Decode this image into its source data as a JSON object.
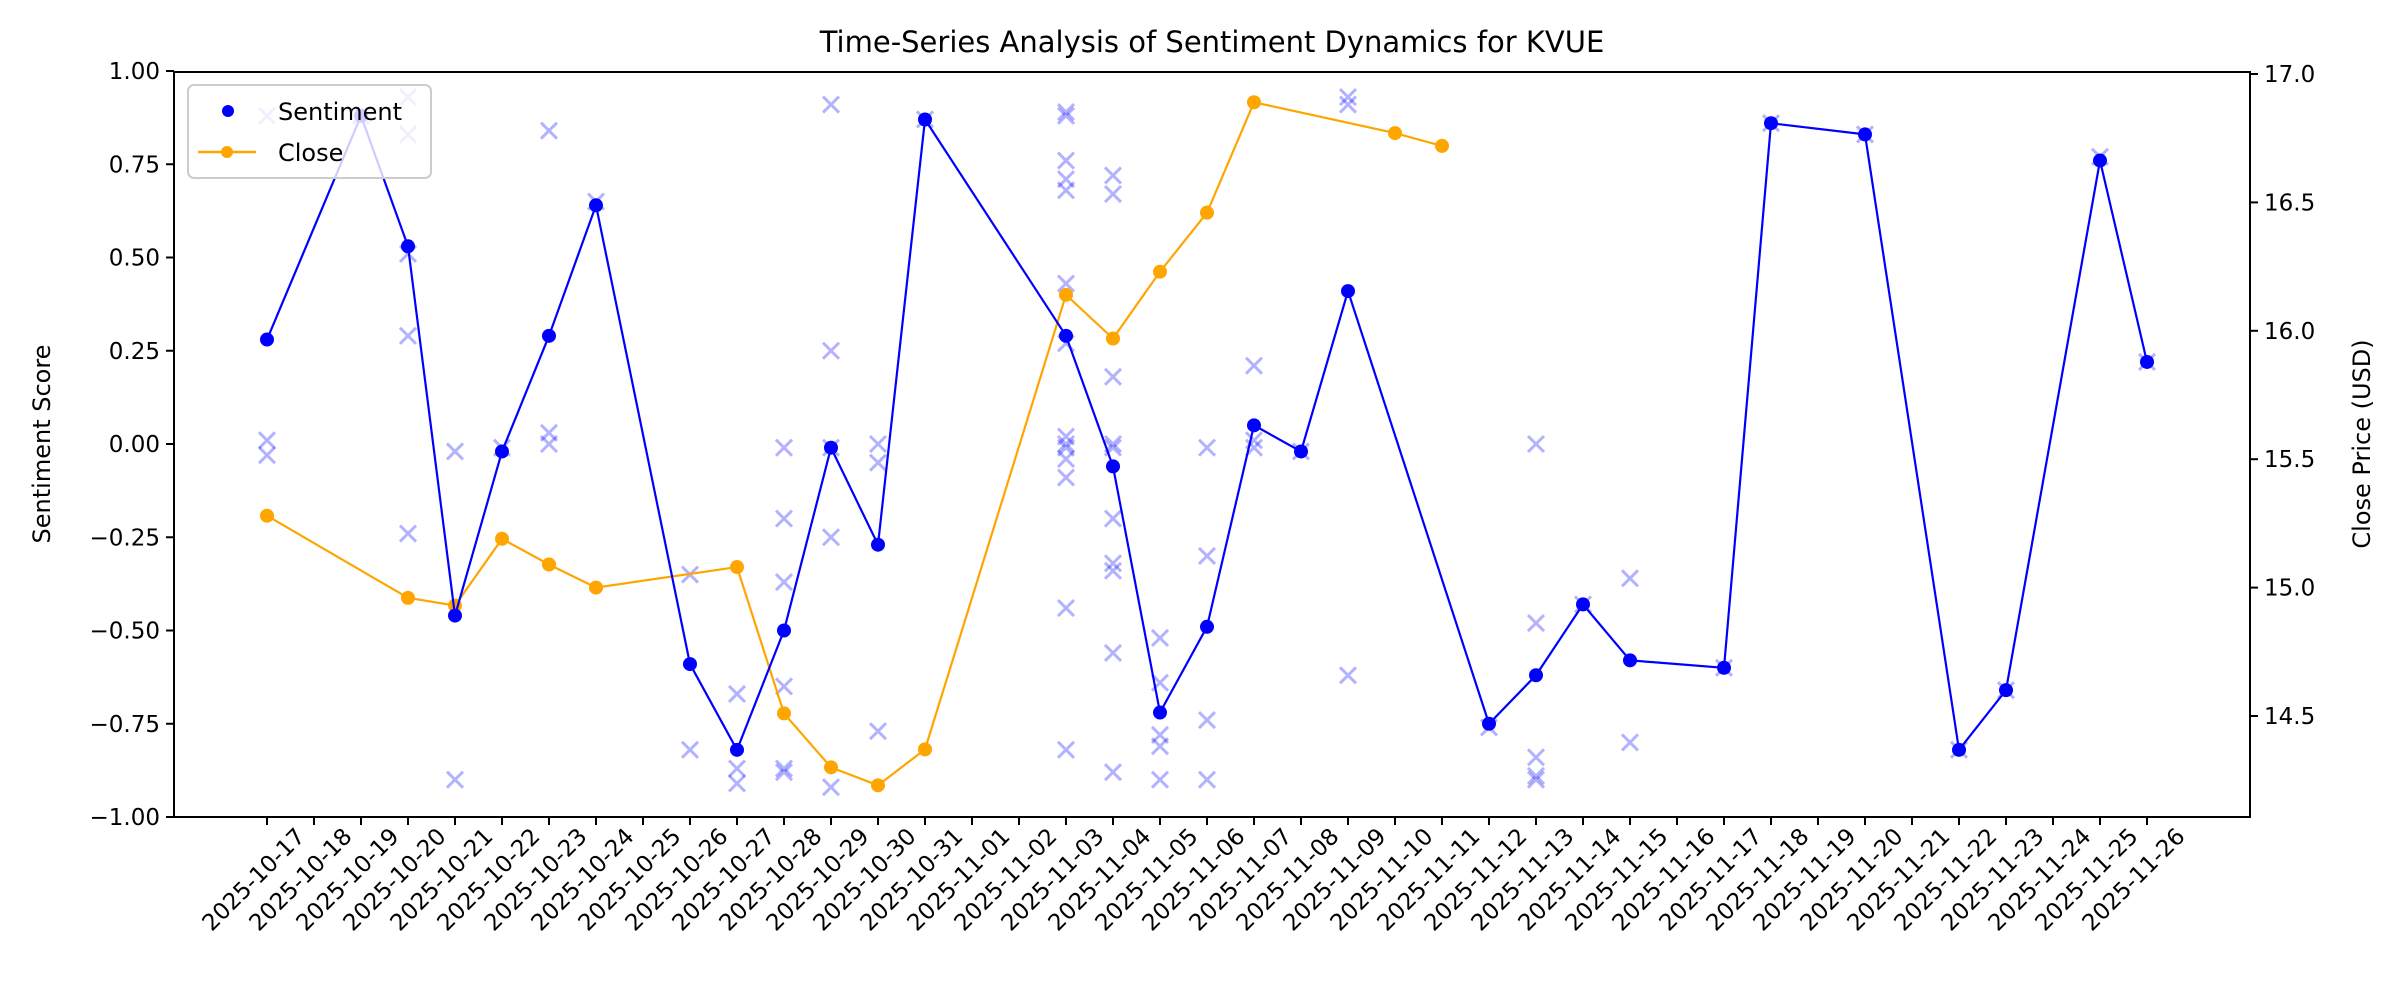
{
  "chart_data": {
    "type": "line",
    "title": "Time-Series Analysis of Sentiment Dynamics for KVUE",
    "xlabel": "",
    "ylabel": "Sentiment Score",
    "ylabel_right": "Close Price (USD)",
    "ylim": [
      -1.0,
      1.0
    ],
    "ylim_right": [
      14.1,
      17.0
    ],
    "yticks": [
      "1.00",
      "0.75",
      "0.50",
      "0.25",
      "0.00",
      "−0.25",
      "−0.50",
      "−0.75",
      "−1.00"
    ],
    "yticks_right": [
      "17.0",
      "16.5",
      "16.0",
      "15.5",
      "15.0",
      "14.5"
    ],
    "grid": false,
    "legend_position": "upper left",
    "categories": [
      "2025-10-17",
      "2025-10-18",
      "2025-10-19",
      "2025-10-20",
      "2025-10-21",
      "2025-10-22",
      "2025-10-23",
      "2025-10-24",
      "2025-10-25",
      "2025-10-26",
      "2025-10-27",
      "2025-10-28",
      "2025-10-29",
      "2025-10-30",
      "2025-10-31",
      "2025-11-01",
      "2025-11-02",
      "2025-11-03",
      "2025-11-04",
      "2025-11-05",
      "2025-11-06",
      "2025-11-07",
      "2025-11-08",
      "2025-11-09",
      "2025-11-10",
      "2025-11-11",
      "2025-11-12",
      "2025-11-13",
      "2025-11-14",
      "2025-11-15",
      "2025-11-16",
      "2025-11-17",
      "2025-11-18",
      "2025-11-19",
      "2025-11-20",
      "2025-11-21",
      "2025-11-22",
      "2025-11-23",
      "2025-11-24",
      "2025-11-25",
      "2025-11-26"
    ],
    "series": [
      {
        "name": "Sentiment",
        "axis": "left",
        "color": "#0000ff",
        "style": "markers-with-line",
        "points": [
          {
            "x": "2025-10-17",
            "y": 0.28
          },
          {
            "x": "2025-10-19",
            "y": 0.88
          },
          {
            "x": "2025-10-20",
            "y": 0.53
          },
          {
            "x": "2025-10-21",
            "y": -0.46
          },
          {
            "x": "2025-10-22",
            "y": -0.02
          },
          {
            "x": "2025-10-23",
            "y": 0.29
          },
          {
            "x": "2025-10-24",
            "y": 0.64
          },
          {
            "x": "2025-10-26",
            "y": -0.59
          },
          {
            "x": "2025-10-27",
            "y": -0.82
          },
          {
            "x": "2025-10-28",
            "y": -0.5
          },
          {
            "x": "2025-10-29",
            "y": -0.01
          },
          {
            "x": "2025-10-30",
            "y": -0.27
          },
          {
            "x": "2025-10-31",
            "y": 0.87
          },
          {
            "x": "2025-11-03",
            "y": 0.29
          },
          {
            "x": "2025-11-04",
            "y": -0.06
          },
          {
            "x": "2025-11-05",
            "y": -0.72
          },
          {
            "x": "2025-11-06",
            "y": -0.49
          },
          {
            "x": "2025-11-07",
            "y": 0.05
          },
          {
            "x": "2025-11-08",
            "y": -0.02
          },
          {
            "x": "2025-11-09",
            "y": 0.41
          },
          {
            "x": "2025-11-12",
            "y": -0.75
          },
          {
            "x": "2025-11-13",
            "y": -0.62
          },
          {
            "x": "2025-11-14",
            "y": -0.43
          },
          {
            "x": "2025-11-15",
            "y": -0.58
          },
          {
            "x": "2025-11-17",
            "y": -0.6
          },
          {
            "x": "2025-11-18",
            "y": 0.86
          },
          {
            "x": "2025-11-20",
            "y": 0.83
          },
          {
            "x": "2025-11-22",
            "y": -0.82
          },
          {
            "x": "2025-11-23",
            "y": -0.66
          },
          {
            "x": "2025-11-25",
            "y": 0.76
          },
          {
            "x": "2025-11-26",
            "y": 0.22
          }
        ]
      },
      {
        "name": "Close",
        "axis": "right",
        "color": "#ffa500",
        "style": "line-with-markers",
        "points": [
          {
            "x": "2025-10-17",
            "y": 15.28
          },
          {
            "x": "2025-10-20",
            "y": 14.96
          },
          {
            "x": "2025-10-21",
            "y": 14.93
          },
          {
            "x": "2025-10-22",
            "y": 15.19
          },
          {
            "x": "2025-10-23",
            "y": 15.09
          },
          {
            "x": "2025-10-24",
            "y": 15.0
          },
          {
            "x": "2025-10-27",
            "y": 15.08
          },
          {
            "x": "2025-10-28",
            "y": 14.51
          },
          {
            "x": "2025-10-29",
            "y": 14.3
          },
          {
            "x": "2025-10-30",
            "y": 14.23
          },
          {
            "x": "2025-10-31",
            "y": 14.37
          },
          {
            "x": "2025-11-03",
            "y": 16.14
          },
          {
            "x": "2025-11-04",
            "y": 15.97
          },
          {
            "x": "2025-11-05",
            "y": 16.23
          },
          {
            "x": "2025-11-06",
            "y": 16.46
          },
          {
            "x": "2025-11-07",
            "y": 16.89
          },
          {
            "x": "2025-11-10",
            "y": 16.77
          },
          {
            "x": "2025-11-11",
            "y": 16.72
          }
        ]
      },
      {
        "name": "Individual sentiment scores",
        "axis": "left",
        "color": "#0000ff",
        "opacity": 0.3,
        "style": "x-markers",
        "in_legend": false,
        "points": [
          {
            "x": "2025-10-17",
            "y": 0.88
          },
          {
            "x": "2025-10-17",
            "y": 0.01
          },
          {
            "x": "2025-10-17",
            "y": -0.03
          },
          {
            "x": "2025-10-19",
            "y": 0.88
          },
          {
            "x": "2025-10-20",
            "y": 0.93
          },
          {
            "x": "2025-10-20",
            "y": 0.83
          },
          {
            "x": "2025-10-20",
            "y": 0.51
          },
          {
            "x": "2025-10-20",
            "y": 0.29
          },
          {
            "x": "2025-10-20",
            "y": -0.24
          },
          {
            "x": "2025-10-21",
            "y": -0.02
          },
          {
            "x": "2025-10-21",
            "y": -0.9
          },
          {
            "x": "2025-10-22",
            "y": -0.01
          },
          {
            "x": "2025-10-23",
            "y": 0.84
          },
          {
            "x": "2025-10-23",
            "y": 0.03
          },
          {
            "x": "2025-10-23",
            "y": 0.0
          },
          {
            "x": "2025-10-24",
            "y": 0.65
          },
          {
            "x": "2025-10-26",
            "y": -0.35
          },
          {
            "x": "2025-10-26",
            "y": -0.82
          },
          {
            "x": "2025-10-27",
            "y": -0.67
          },
          {
            "x": "2025-10-27",
            "y": -0.87
          },
          {
            "x": "2025-10-27",
            "y": -0.91
          },
          {
            "x": "2025-10-28",
            "y": -0.01
          },
          {
            "x": "2025-10-28",
            "y": -0.2
          },
          {
            "x": "2025-10-28",
            "y": -0.37
          },
          {
            "x": "2025-10-28",
            "y": -0.65
          },
          {
            "x": "2025-10-28",
            "y": -0.87
          },
          {
            "x": "2025-10-28",
            "y": -0.88
          },
          {
            "x": "2025-10-29",
            "y": 0.91
          },
          {
            "x": "2025-10-29",
            "y": 0.25
          },
          {
            "x": "2025-10-29",
            "y": -0.01
          },
          {
            "x": "2025-10-29",
            "y": -0.25
          },
          {
            "x": "2025-10-29",
            "y": -0.92
          },
          {
            "x": "2025-10-30",
            "y": 0.0
          },
          {
            "x": "2025-10-30",
            "y": -0.05
          },
          {
            "x": "2025-10-30",
            "y": -0.77
          },
          {
            "x": "2025-10-31",
            "y": 0.87
          },
          {
            "x": "2025-11-03",
            "y": 0.89
          },
          {
            "x": "2025-11-03",
            "y": 0.88
          },
          {
            "x": "2025-11-03",
            "y": 0.76
          },
          {
            "x": "2025-11-03",
            "y": 0.71
          },
          {
            "x": "2025-11-03",
            "y": 0.68
          },
          {
            "x": "2025-11-03",
            "y": 0.43
          },
          {
            "x": "2025-11-03",
            "y": 0.27
          },
          {
            "x": "2025-11-03",
            "y": 0.02
          },
          {
            "x": "2025-11-03",
            "y": 0.0
          },
          {
            "x": "2025-11-03",
            "y": -0.01
          },
          {
            "x": "2025-11-03",
            "y": -0.04
          },
          {
            "x": "2025-11-03",
            "y": -0.09
          },
          {
            "x": "2025-11-03",
            "y": -0.44
          },
          {
            "x": "2025-11-03",
            "y": -0.82
          },
          {
            "x": "2025-11-04",
            "y": 0.72
          },
          {
            "x": "2025-11-04",
            "y": 0.67
          },
          {
            "x": "2025-11-04",
            "y": 0.18
          },
          {
            "x": "2025-11-04",
            "y": 0.0
          },
          {
            "x": "2025-11-04",
            "y": -0.01
          },
          {
            "x": "2025-11-04",
            "y": -0.2
          },
          {
            "x": "2025-11-04",
            "y": -0.32
          },
          {
            "x": "2025-11-04",
            "y": -0.34
          },
          {
            "x": "2025-11-04",
            "y": -0.56
          },
          {
            "x": "2025-11-04",
            "y": -0.88
          },
          {
            "x": "2025-11-05",
            "y": -0.52
          },
          {
            "x": "2025-11-05",
            "y": -0.64
          },
          {
            "x": "2025-11-05",
            "y": -0.78
          },
          {
            "x": "2025-11-05",
            "y": -0.81
          },
          {
            "x": "2025-11-05",
            "y": -0.9
          },
          {
            "x": "2025-11-06",
            "y": -0.01
          },
          {
            "x": "2025-11-06",
            "y": -0.3
          },
          {
            "x": "2025-11-06",
            "y": -0.74
          },
          {
            "x": "2025-11-06",
            "y": -0.9
          },
          {
            "x": "2025-11-07",
            "y": 0.21
          },
          {
            "x": "2025-11-07",
            "y": 0.01
          },
          {
            "x": "2025-11-07",
            "y": -0.01
          },
          {
            "x": "2025-11-08",
            "y": -0.02
          },
          {
            "x": "2025-11-09",
            "y": 0.93
          },
          {
            "x": "2025-11-09",
            "y": 0.91
          },
          {
            "x": "2025-11-09",
            "y": -0.62
          },
          {
            "x": "2025-11-12",
            "y": -0.76
          },
          {
            "x": "2025-11-13",
            "y": 0.0
          },
          {
            "x": "2025-11-13",
            "y": -0.48
          },
          {
            "x": "2025-11-13",
            "y": -0.84
          },
          {
            "x": "2025-11-13",
            "y": -0.89
          },
          {
            "x": "2025-11-13",
            "y": -0.9
          },
          {
            "x": "2025-11-14",
            "y": -0.43
          },
          {
            "x": "2025-11-15",
            "y": -0.36
          },
          {
            "x": "2025-11-15",
            "y": -0.8
          },
          {
            "x": "2025-11-17",
            "y": -0.6
          },
          {
            "x": "2025-11-18",
            "y": 0.86
          },
          {
            "x": "2025-11-20",
            "y": 0.83
          },
          {
            "x": "2025-11-22",
            "y": -0.82
          },
          {
            "x": "2025-11-23",
            "y": -0.66
          },
          {
            "x": "2025-11-25",
            "y": 0.77
          },
          {
            "x": "2025-11-26",
            "y": 0.22
          }
        ]
      }
    ]
  },
  "legend": {
    "items": [
      {
        "label": "Sentiment",
        "color": "#0000ff",
        "kind": "marker"
      },
      {
        "label": "Close",
        "color": "#ffa500",
        "kind": "line-marker"
      }
    ]
  }
}
